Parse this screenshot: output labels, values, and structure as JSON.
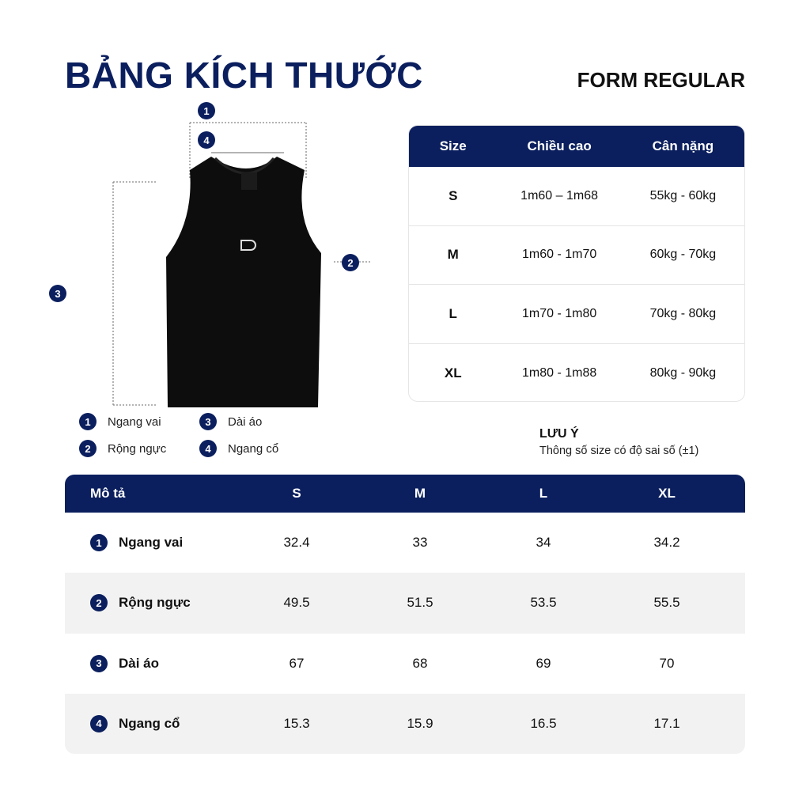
{
  "header": {
    "title": "BẢNG KÍCH THƯỚC",
    "form": "FORM REGULAR"
  },
  "colors": {
    "navy": "#0b1f5e",
    "alt_row": "#f2f2f2"
  },
  "diagram": {
    "markers": [
      "1",
      "2",
      "3",
      "4"
    ],
    "legend": [
      {
        "num": "1",
        "label": "Ngang vai"
      },
      {
        "num": "2",
        "label": "Rộng ngực"
      },
      {
        "num": "3",
        "label": "Dài áo"
      },
      {
        "num": "4",
        "label": "Ngang cổ"
      }
    ]
  },
  "size_table": {
    "headers": [
      "Size",
      "Chiều cao",
      "Cân nặng"
    ],
    "rows": [
      [
        "S",
        "1m60 – 1m68",
        "55kg - 60kg"
      ],
      [
        "M",
        "1m60 - 1m70",
        "60kg - 70kg"
      ],
      [
        "L",
        "1m70 - 1m80",
        "70kg - 80kg"
      ],
      [
        "XL",
        "1m80 - 1m88",
        "80kg - 90kg"
      ]
    ]
  },
  "note": {
    "title": "LƯU Ý",
    "text": "Thông số size có độ sai số (±1)"
  },
  "measure_table": {
    "headers": [
      "Mô tả",
      "S",
      "M",
      "L",
      "XL"
    ],
    "rows": [
      {
        "num": "1",
        "label": "Ngang vai",
        "values": [
          "32.4",
          "33",
          "34",
          "34.2"
        ]
      },
      {
        "num": "2",
        "label": "Rộng ngực",
        "values": [
          "49.5",
          "51.5",
          "53.5",
          "55.5"
        ]
      },
      {
        "num": "3",
        "label": "Dài áo",
        "values": [
          "67",
          "68",
          "69",
          "70"
        ]
      },
      {
        "num": "4",
        "label": "Ngang cổ",
        "values": [
          "15.3",
          "15.9",
          "16.5",
          "17.1"
        ]
      }
    ]
  }
}
